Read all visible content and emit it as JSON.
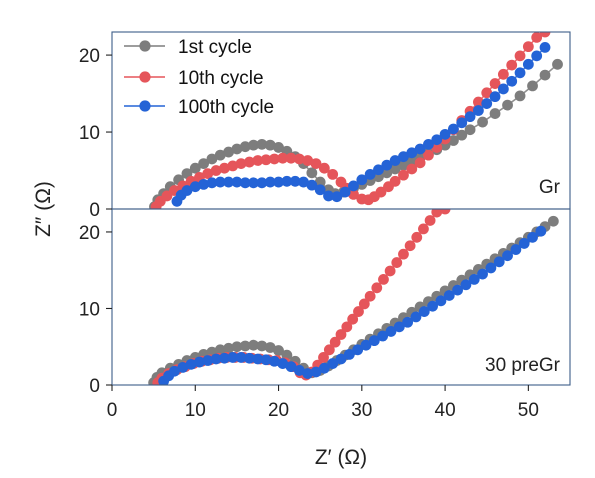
{
  "chart_data": [
    {
      "type": "scatter",
      "panel_label": "Gr",
      "xlabel": "Z′ (Ω)",
      "ylabel": "Z″ (Ω)",
      "xlim": [
        0,
        55
      ],
      "ylim": [
        0,
        23
      ],
      "xticks": [
        0,
        10,
        20,
        30,
        40,
        50
      ],
      "yticks": [
        0,
        10,
        20
      ],
      "legend_position": "top-left",
      "series": [
        {
          "name": "1st cycle",
          "color": "#7d7d7d",
          "x": [
            5.1,
            5.5,
            6.2,
            7.0,
            8.0,
            9.0,
            10.0,
            11.0,
            12.0,
            13.0,
            14.0,
            15.0,
            16.0,
            17.0,
            18.0,
            19.0,
            20.0,
            21.0,
            22.0,
            23.0,
            24.0,
            25.0,
            26.0,
            26.8,
            27.8,
            29.0,
            30.0,
            31.0,
            32.0,
            33.0,
            34.0,
            35.0,
            36.0,
            37.0,
            38.0,
            39.0,
            40.0,
            41.0,
            42.0,
            43.0,
            44.5,
            46.0,
            47.5,
            49.0,
            50.5,
            52.0,
            53.5
          ],
          "y": [
            0.3,
            1.2,
            2.0,
            2.9,
            3.8,
            4.6,
            5.3,
            5.9,
            6.5,
            7.0,
            7.4,
            7.8,
            8.1,
            8.3,
            8.4,
            8.3,
            8.0,
            7.5,
            6.8,
            5.9,
            4.7,
            3.5,
            2.5,
            2.0,
            2.2,
            2.7,
            3.2,
            3.7,
            4.2,
            4.7,
            5.2,
            5.7,
            6.2,
            6.7,
            7.2,
            7.7,
            8.3,
            8.9,
            9.6,
            10.3,
            11.3,
            12.4,
            13.5,
            14.7,
            16.0,
            17.4,
            18.8
          ]
        },
        {
          "name": "10th cycle",
          "color": "#e5555a",
          "x": [
            5.3,
            5.8,
            6.6,
            7.5,
            8.5,
            9.5,
            10.5,
            11.5,
            12.5,
            13.5,
            14.5,
            15.5,
            16.5,
            17.5,
            18.5,
            19.5,
            20.5,
            21.5,
            22.5,
            23.5,
            24.5,
            25.5,
            26.5,
            27.5,
            28.2,
            29.0,
            30.0,
            30.8,
            31.5,
            32.3,
            33.2,
            34.0,
            35.0,
            36.0,
            37.0,
            38.0,
            39.0,
            40.0,
            41.0,
            42.0,
            43.0,
            44.0,
            45.0,
            46.0,
            47.0,
            48.0,
            49.0,
            50.0,
            51.0,
            52.0
          ],
          "y": [
            0.3,
            1.0,
            1.7,
            2.4,
            3.0,
            3.6,
            4.1,
            4.6,
            5.0,
            5.3,
            5.6,
            5.9,
            6.1,
            6.3,
            6.4,
            6.5,
            6.6,
            6.6,
            6.5,
            6.3,
            5.9,
            5.3,
            4.5,
            3.5,
            2.7,
            1.9,
            1.3,
            1.2,
            1.6,
            2.2,
            2.9,
            3.6,
            4.4,
            5.2,
            6.0,
            7.0,
            8.0,
            9.1,
            10.3,
            11.5,
            12.7,
            13.9,
            15.1,
            16.3,
            17.5,
            18.7,
            19.9,
            21.1,
            22.3,
            23.0
          ]
        },
        {
          "name": "100th cycle",
          "color": "#2463d6",
          "x": [
            7.8,
            8.3,
            9.0,
            10.0,
            11.0,
            12.0,
            13.0,
            14.0,
            15.0,
            16.0,
            17.0,
            18.0,
            19.0,
            20.0,
            21.0,
            22.0,
            23.0,
            24.0,
            25.0,
            26.0,
            27.0,
            28.0,
            29.0,
            30.0,
            31.0,
            32.0,
            33.0,
            34.0,
            35.0,
            36.0,
            37.0,
            38.0,
            39.0,
            40.0,
            41.0,
            42.0,
            43.0,
            44.0,
            45.0,
            46.0,
            47.0,
            48.0,
            49.0,
            50.0,
            51.0,
            52.0
          ],
          "y": [
            1.0,
            1.8,
            2.4,
            2.9,
            3.2,
            3.4,
            3.5,
            3.5,
            3.5,
            3.4,
            3.4,
            3.4,
            3.5,
            3.5,
            3.6,
            3.6,
            3.5,
            3.1,
            2.5,
            1.7,
            1.6,
            2.2,
            3.0,
            3.8,
            4.5,
            5.1,
            5.7,
            6.3,
            6.8,
            7.3,
            7.8,
            8.4,
            9.0,
            9.7,
            10.4,
            11.2,
            12.0,
            12.8,
            13.7,
            14.6,
            15.6,
            16.6,
            17.7,
            18.8,
            19.9,
            21.0
          ]
        }
      ]
    },
    {
      "type": "scatter",
      "panel_label": "30 preGr",
      "xlabel": "Z′ (Ω)",
      "ylabel": "Z″ (Ω)",
      "xlim": [
        0,
        55
      ],
      "ylim": [
        0,
        23
      ],
      "xticks": [
        0,
        10,
        20,
        30,
        40,
        50
      ],
      "yticks": [
        0,
        10,
        20
      ],
      "series": [
        {
          "name": "1st cycle",
          "color": "#7d7d7d",
          "x": [
            5.0,
            5.4,
            6.0,
            7.0,
            8.0,
            9.0,
            10.0,
            11.0,
            12.0,
            13.0,
            14.0,
            15.0,
            16.0,
            17.0,
            18.0,
            19.0,
            20.0,
            21.0,
            22.0,
            23.0,
            24.0,
            25.0,
            26.0,
            27.0,
            28.0,
            29.0,
            30.0,
            31.0,
            32.0,
            33.0,
            34.0,
            35.0,
            36.0,
            37.0,
            38.0,
            39.0,
            40.0,
            41.0,
            42.0,
            43.0,
            44.0,
            45.0,
            46.0,
            47.0,
            48.0,
            49.0,
            50.0,
            51.0,
            52.0,
            53.0
          ],
          "y": [
            0.3,
            1.0,
            1.6,
            2.2,
            2.7,
            3.2,
            3.6,
            4.0,
            4.3,
            4.6,
            4.8,
            5.0,
            5.1,
            5.2,
            5.1,
            4.9,
            4.5,
            3.9,
            3.1,
            2.2,
            1.6,
            1.9,
            2.5,
            3.2,
            3.9,
            4.6,
            5.3,
            6.0,
            6.7,
            7.4,
            8.1,
            8.8,
            9.5,
            10.2,
            10.9,
            11.6,
            12.3,
            13.0,
            13.7,
            14.4,
            15.1,
            15.8,
            16.5,
            17.2,
            17.9,
            18.6,
            19.3,
            20.0,
            20.7,
            21.4
          ]
        },
        {
          "name": "10th cycle",
          "color": "#e5555a",
          "x": [
            5.5,
            6.0,
            6.8,
            7.8,
            8.8,
            9.8,
            10.8,
            11.8,
            12.8,
            13.8,
            14.8,
            15.8,
            16.8,
            17.8,
            18.8,
            19.8,
            20.8,
            21.8,
            22.6,
            23.3,
            24.0,
            24.7,
            25.4,
            26.1,
            26.8,
            27.5,
            28.2,
            28.9,
            29.6,
            30.3,
            31.0,
            31.8,
            32.6,
            33.4,
            34.2,
            35.0,
            35.8,
            36.6,
            37.4,
            38.2,
            39.0,
            40.0
          ],
          "y": [
            0.3,
            0.9,
            1.5,
            2.0,
            2.4,
            2.8,
            3.1,
            3.3,
            3.5,
            3.6,
            3.6,
            3.6,
            3.5,
            3.4,
            3.3,
            3.2,
            2.9,
            2.4,
            1.6,
            1.3,
            1.7,
            2.6,
            3.6,
            4.6,
            5.6,
            6.6,
            7.6,
            8.6,
            9.6,
            10.6,
            11.6,
            12.7,
            13.8,
            14.9,
            16.0,
            17.1,
            18.2,
            19.3,
            20.4,
            21.5,
            22.6,
            23.0
          ]
        },
        {
          "name": "100th cycle",
          "color": "#2463d6",
          "x": [
            6.2,
            6.8,
            7.5,
            8.5,
            9.5,
            10.5,
            11.5,
            12.5,
            13.5,
            14.5,
            15.5,
            16.5,
            17.5,
            18.5,
            19.5,
            20.5,
            21.5,
            22.5,
            23.5,
            24.5,
            25.5,
            26.5,
            27.5,
            28.5,
            29.5,
            30.5,
            31.5,
            32.5,
            33.5,
            34.5,
            35.5,
            36.5,
            37.5,
            38.5,
            39.5,
            40.5,
            41.5,
            42.5,
            43.5,
            44.5,
            45.5,
            46.5,
            47.5,
            48.5,
            49.5,
            50.5,
            51.5
          ],
          "y": [
            0.5,
            1.2,
            1.8,
            2.3,
            2.7,
            3.0,
            3.2,
            3.4,
            3.5,
            3.6,
            3.6,
            3.5,
            3.4,
            3.3,
            3.1,
            2.8,
            2.4,
            1.9,
            1.5,
            1.7,
            2.2,
            2.8,
            3.4,
            4.0,
            4.6,
            5.2,
            5.8,
            6.4,
            7.0,
            7.6,
            8.2,
            8.9,
            9.6,
            10.3,
            11.0,
            11.7,
            12.4,
            13.1,
            13.8,
            14.5,
            15.3,
            16.1,
            16.9,
            17.7,
            18.5,
            19.3,
            20.1
          ]
        }
      ]
    }
  ]
}
